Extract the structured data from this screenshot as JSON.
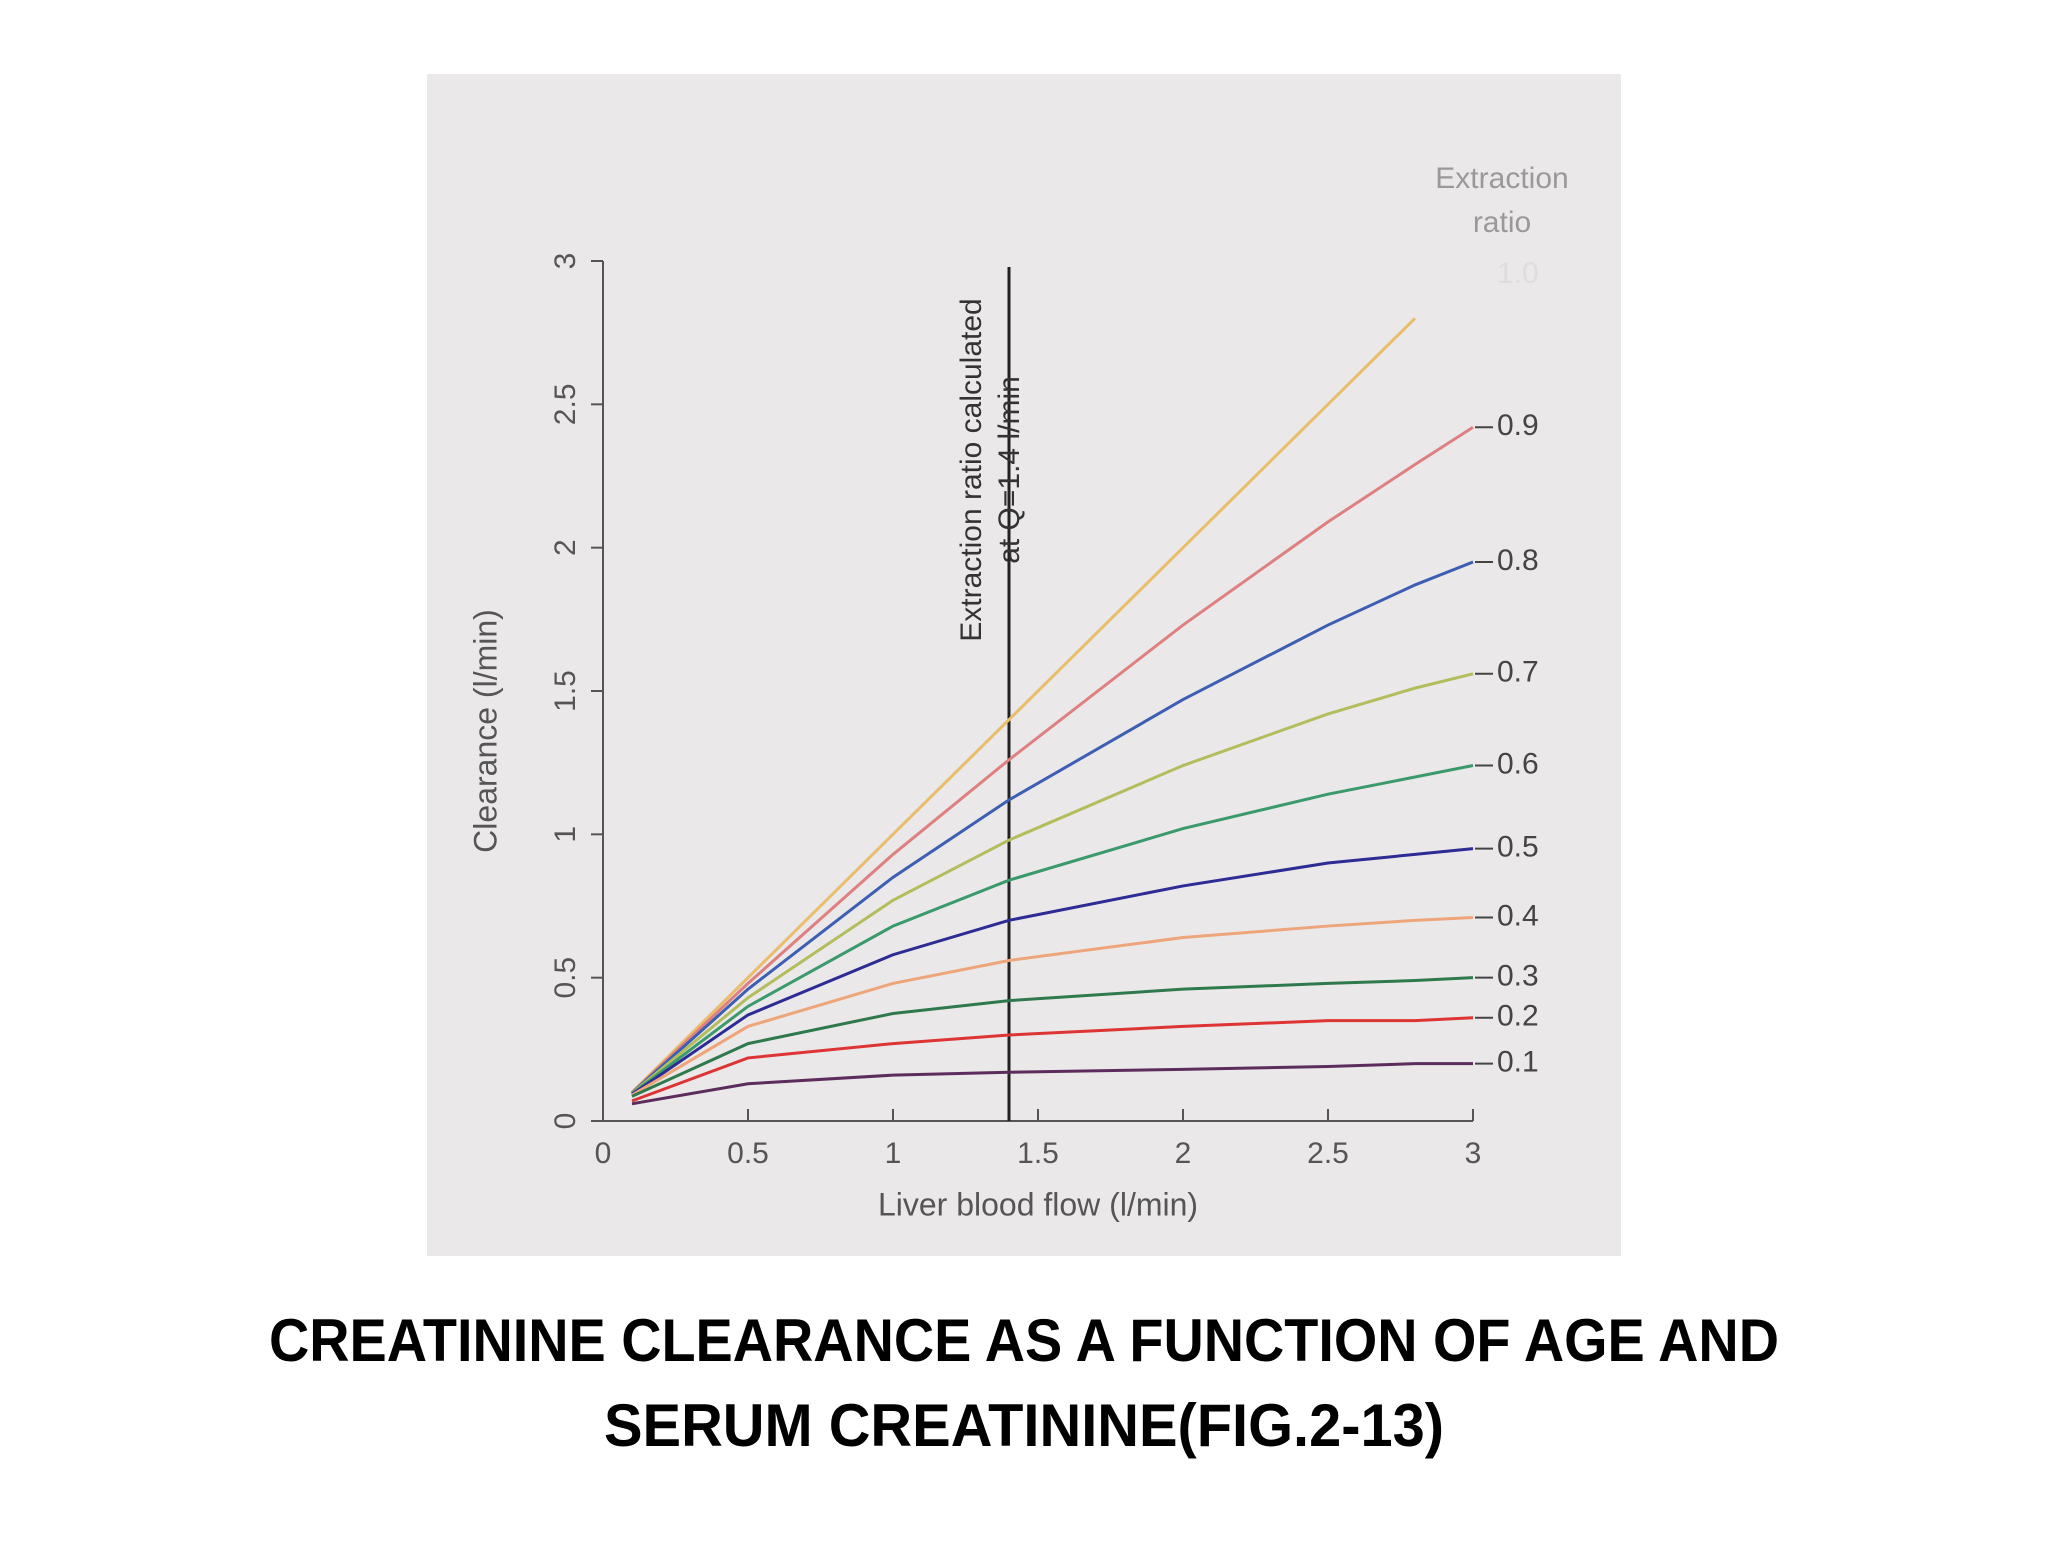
{
  "chart_data": {
    "type": "line",
    "title": [
      "CREATININE CLEARANCE AS A FUNCTION OF AGE AND",
      "SERUM CREATININE(FIG.2-13)"
    ],
    "x_label": "Liver blood flow (l/min)",
    "y_label": "Clearance (l/min)",
    "legend_title": [
      "Extraction",
      "ratio"
    ],
    "annotation": [
      "Extraction ratio calculated",
      "at Q=1.4 l/min"
    ],
    "annotation_x": 1.4,
    "xlim": [
      0,
      3
    ],
    "xticks": [
      0,
      0.5,
      1,
      1.5,
      2,
      2.5,
      3
    ],
    "ylim": [
      0,
      3
    ],
    "yticks": [
      0,
      0.5,
      1,
      1.5,
      2,
      2.5,
      3
    ],
    "x": [
      0.1,
      0.5,
      1,
      1.4,
      2,
      2.5,
      2.8,
      3
    ],
    "series": [
      {
        "name": "1.0",
        "color": "#e9bd6a",
        "values": [
          0.1,
          0.5,
          1,
          1.4,
          2,
          2.5,
          2.8,
          null
        ]
      },
      {
        "name": "0.9",
        "color": "#df8080",
        "values": [
          0.099,
          0.48,
          0.93,
          1.26,
          1.73,
          2.09,
          2.29,
          2.42
        ]
      },
      {
        "name": "0.8",
        "color": "#3d5fb3",
        "values": [
          0.098,
          0.46,
          0.85,
          1.12,
          1.47,
          1.73,
          1.87,
          1.95
        ]
      },
      {
        "name": "0.7",
        "color": "#b4bd5c",
        "values": [
          0.097,
          0.43,
          0.77,
          0.98,
          1.24,
          1.42,
          1.51,
          1.56
        ]
      },
      {
        "name": "0.6",
        "color": "#3a9a6c",
        "values": [
          0.095,
          0.4,
          0.68,
          0.84,
          1.02,
          1.14,
          1.2,
          1.24
        ]
      },
      {
        "name": "0.5",
        "color": "#2c2c94",
        "values": [
          0.093,
          0.37,
          0.58,
          0.7,
          0.82,
          0.9,
          0.93,
          0.95
        ]
      },
      {
        "name": "0.4",
        "color": "#eea57a",
        "values": [
          0.09,
          0.33,
          0.48,
          0.56,
          0.64,
          0.68,
          0.7,
          0.71
        ]
      },
      {
        "name": "0.3",
        "color": "#2f7a4c",
        "values": [
          0.086,
          0.27,
          0.375,
          0.42,
          0.46,
          0.48,
          0.49,
          0.5
        ]
      },
      {
        "name": "0.2",
        "color": "#dd3434",
        "values": [
          0.07,
          0.22,
          0.27,
          0.3,
          0.33,
          0.35,
          0.35,
          0.36
        ]
      },
      {
        "name": "0.1",
        "color": "#5c2d5c",
        "values": [
          0.06,
          0.13,
          0.16,
          0.17,
          0.18,
          0.19,
          0.2,
          0.2
        ]
      }
    ]
  }
}
